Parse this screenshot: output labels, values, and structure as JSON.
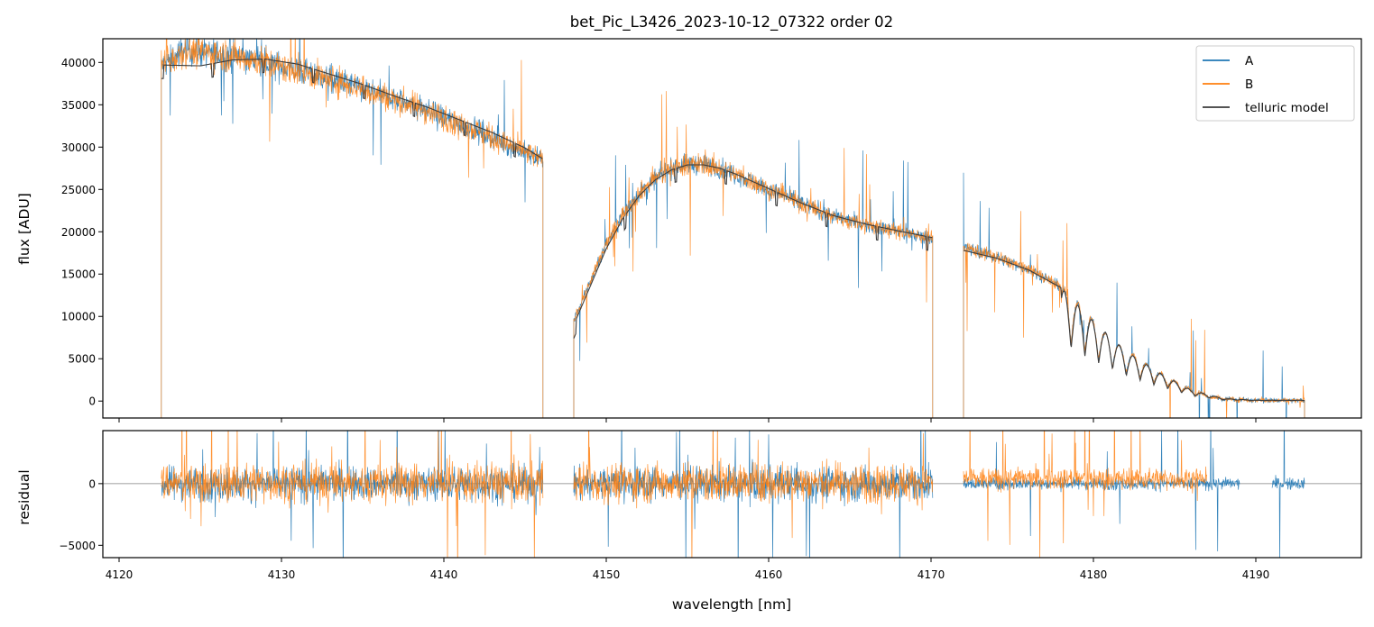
{
  "chart_data": {
    "type": "line",
    "title": "bet_Pic_L3426_2023-10-12_07322  order 02",
    "xlabel": "wavelength [nm]",
    "colors": {
      "A": "#1f77b4",
      "B": "#ff7f0e",
      "telluric": "#3c3c3c",
      "zero": "#808080"
    },
    "xlim": [
      4119,
      4196.5
    ],
    "xticks": [
      4120,
      4130,
      4140,
      4150,
      4160,
      4170,
      4180,
      4190
    ],
    "legend": {
      "placement": "top-right",
      "entries": [
        "A",
        "B",
        "telluric model"
      ]
    },
    "flux_panel": {
      "ylabel": "flux [ADU]",
      "ylim": [
        -2000,
        42800
      ],
      "yticks": [
        0,
        5000,
        10000,
        15000,
        20000,
        25000,
        30000,
        35000,
        40000
      ],
      "segments": [
        {
          "x": [
            4122.6,
            4124,
            4126,
            4128,
            4130,
            4132,
            4134,
            4136,
            4138,
            4140,
            4142,
            4144,
            4146.1
          ],
          "y": [
            39500,
            41500,
            41000,
            40500,
            39500,
            38500,
            37500,
            36200,
            35000,
            33500,
            32000,
            30200,
            28500
          ]
        },
        {
          "x": [
            4148,
            4149,
            4150,
            4151,
            4152,
            4153,
            4154,
            4155,
            4156,
            4157,
            4158,
            4160,
            4162,
            4164,
            4166,
            4168,
            4170.1
          ],
          "y": [
            9500,
            14000,
            18500,
            22000,
            24500,
            26300,
            27500,
            28000,
            27900,
            27500,
            26800,
            25000,
            23300,
            21800,
            20800,
            20000,
            19200
          ]
        },
        {
          "x": [
            4172,
            4174,
            4176,
            4178,
            4179,
            4180,
            4181,
            4182,
            4183,
            4184,
            4185,
            4186,
            4187,
            4188,
            4190,
            4193
          ],
          "y": [
            18200,
            17000,
            15600,
            13500,
            11800,
            9500,
            7500,
            6000,
            4800,
            3500,
            2400,
            1400,
            700,
            300,
            100,
            100
          ]
        }
      ],
      "model_segments": [
        {
          "x": [
            4122.6,
            4125,
            4127,
            4129,
            4131,
            4133,
            4135,
            4137,
            4139,
            4141,
            4143,
            4145,
            4146.1
          ],
          "y": [
            39700,
            39600,
            40300,
            40400,
            39800,
            38600,
            37400,
            36000,
            34700,
            33200,
            31700,
            29900,
            28600
          ]
        },
        {
          "x": [
            4148,
            4149,
            4150,
            4151,
            4152,
            4153,
            4154,
            4155,
            4156,
            4157,
            4158,
            4160,
            4162,
            4164,
            4166,
            4168,
            4170.1
          ],
          "y": [
            9000,
            13500,
            18000,
            21500,
            24200,
            26100,
            27300,
            27900,
            27900,
            27500,
            26800,
            25100,
            23400,
            21900,
            20900,
            20100,
            19300
          ]
        },
        {
          "x": [
            4172,
            4174,
            4176,
            4178,
            4180,
            4182,
            4184,
            4186,
            4188,
            4190,
            4193
          ],
          "y": [
            17800,
            16900,
            15500,
            13400,
            9400,
            5900,
            3400,
            1300,
            300,
            100,
            100
          ]
        }
      ]
    },
    "residual_panel": {
      "ylabel": "residual",
      "ylim": [
        -6000,
        4300
      ],
      "yticks": [
        -5000,
        0
      ],
      "zero_line": 0,
      "segments_A": [
        [
          4122.6,
          4146.1
        ],
        [
          4148,
          4170.1
        ],
        [
          4172,
          4189
        ],
        [
          4191,
          4193
        ]
      ],
      "segments_B": [
        [
          4122.6,
          4146.1
        ],
        [
          4148,
          4170.1
        ],
        [
          4172,
          4187
        ]
      ]
    }
  }
}
